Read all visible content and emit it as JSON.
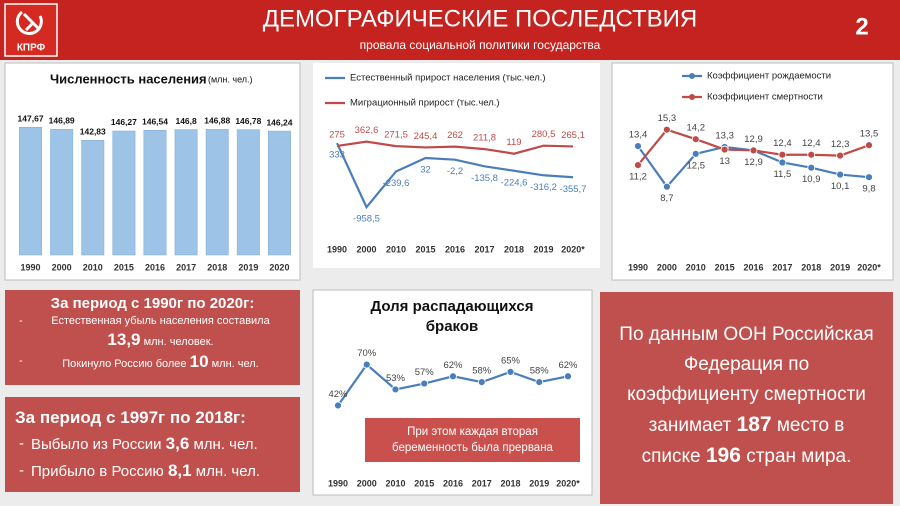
{
  "header": {
    "logo": "КПРФ",
    "title": "ДЕМОГРАФИЧЕСКИЕ ПОСЛЕДСТВИЯ",
    "subtitle": "провала социальной политики государства",
    "page_number": "2"
  },
  "chart_data": [
    {
      "type": "bar",
      "title": "Численность населения",
      "subtitle": "(млн. чел.)",
      "categories": [
        "1990",
        "2000",
        "2010",
        "2015",
        "2016",
        "2017",
        "2018",
        "2019",
        "2020"
      ],
      "values": [
        147.67,
        146.89,
        142.83,
        146.27,
        146.54,
        146.8,
        146.88,
        146.78,
        146.24
      ],
      "value_labels": [
        "147,67",
        "146,89",
        "142,83",
        "146,27",
        "146,54",
        "146,8",
        "146,88",
        "146,78",
        "146,24"
      ],
      "color": "#9dc3e6",
      "ylim": [
        100,
        150
      ]
    },
    {
      "type": "line",
      "categories": [
        "1990",
        "2000",
        "2010",
        "2015",
        "2016",
        "2017",
        "2018",
        "2019",
        "2020*"
      ],
      "series": [
        {
          "name": "Естественный прирост населения (тыс.чел.)",
          "color": "#4a7ebb",
          "values": [
            333,
            -958.5,
            -239.6,
            32,
            -2.2,
            -135.8,
            -224.6,
            -316.2,
            -355.7
          ],
          "value_labels": [
            "333",
            "-958,5",
            "-239,6",
            "32",
            "-2,2",
            "-135,8",
            "-224,6",
            "-316,2",
            "-355,7"
          ]
        },
        {
          "name": "Миграционный прирост (тыс.чел.)",
          "color": "#be4b48",
          "values": [
            275,
            362.6,
            271.5,
            245.4,
            262,
            211.8,
            119,
            280.5,
            265.1
          ],
          "value_labels": [
            "275",
            "362,6",
            "271,5",
            "245,4",
            "262",
            "211,8",
            "119",
            "280,5",
            "265,1"
          ]
        }
      ],
      "ylim": [
        -1500,
        1000
      ],
      "markers": false
    },
    {
      "type": "line",
      "categories": [
        "1990",
        "2000",
        "2010",
        "2015",
        "2016",
        "2017",
        "2018",
        "2019",
        "2020*"
      ],
      "series": [
        {
          "name": "Коэффициент рождаемости",
          "color": "#4a7ebb",
          "values": [
            13.4,
            8.7,
            12.5,
            13.3,
            12.9,
            11.5,
            10.9,
            10.1,
            9.8
          ],
          "value_labels": [
            "13,4",
            "8,7",
            "12,5",
            "13,3",
            "12,9",
            "11,5",
            "10,9",
            "10,1",
            "9,8"
          ]
        },
        {
          "name": "Коэффициент смертности",
          "color": "#be4b48",
          "values": [
            11.2,
            15.3,
            14.2,
            13,
            12.9,
            12.4,
            12.4,
            12.3,
            13.5
          ],
          "value_labels": [
            "11,2",
            "15,3",
            "14,2",
            "13",
            "12,9",
            "12,4",
            "12,4",
            "12,3",
            "13,5"
          ]
        }
      ],
      "ylim": [
        6,
        17
      ],
      "markers": true
    },
    {
      "type": "line",
      "title": "Доля распадающихся браков",
      "categories": [
        "1990",
        "2000",
        "2010",
        "2015",
        "2016",
        "2017",
        "2018",
        "2019",
        "2020*"
      ],
      "values": [
        42,
        70,
        53,
        57,
        62,
        58,
        65,
        58,
        62
      ],
      "value_labels": [
        "42%",
        "70%",
        "53%",
        "57%",
        "62%",
        "58%",
        "65%",
        "58%",
        "62%"
      ],
      "color": "#4a7ebb",
      "ylim": [
        30,
        80
      ],
      "markers": true,
      "annotation": "При этом каждая вторая беременность была прервана"
    }
  ],
  "summary_1990_2020": {
    "title": "За период с 1990г по 2020г:",
    "items": [
      {
        "text": "Естественная убыль населения составила",
        "value": "13,9",
        "unit": "млн. человек."
      },
      {
        "text": "Покинуло Россию более",
        "value": "10",
        "unit": "млн. чел."
      }
    ]
  },
  "summary_1997_2018": {
    "title": "За период с 1997г по 2018г:",
    "items": [
      {
        "text": "Выбыло из России",
        "value": "3,6",
        "unit": "млн. чел."
      },
      {
        "text": "Прибыло в Россию",
        "value": "8,1",
        "unit": "млн. чел."
      }
    ]
  },
  "un_note": {
    "text_before": "По данным ООН Российская Федерация по коэффициенту смертности занимает",
    "rank": "187",
    "text_middle": "место в списке",
    "total": "196",
    "text_after": "стран мира."
  }
}
